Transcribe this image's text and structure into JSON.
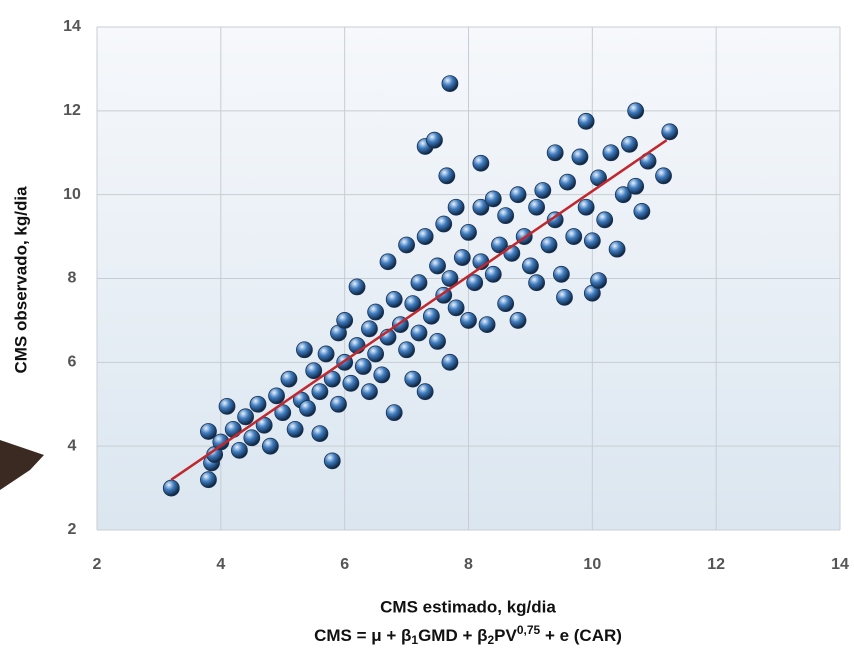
{
  "chart_data": {
    "type": "scatter",
    "x_label": "CMS estimado, kg/dia",
    "formula": [
      "CMS = μ + β",
      "1",
      "GMD + β",
      "2",
      "PV",
      "0,75",
      " + e (CAR)"
    ],
    "y_label": "CMS observado, kg/dia",
    "xlim": [
      2,
      14
    ],
    "ylim": [
      2,
      14
    ],
    "xticks": [
      2,
      4,
      6,
      8,
      10,
      12,
      14
    ],
    "yticks": [
      2,
      4,
      6,
      8,
      10,
      12,
      14
    ],
    "grid": true,
    "series": [
      {
        "type": "scatter",
        "color": "#3f7cc0",
        "x": [
          7.7,
          7.3,
          7.45,
          8.2,
          7.65,
          3.2,
          3.8,
          5.8,
          10.7,
          9.9,
          11.25,
          11.15,
          10.0,
          9.55,
          10.1,
          4.1,
          3.8,
          3.85,
          3.9,
          4.0,
          4.2,
          4.3,
          4.4,
          4.5,
          4.6,
          4.7,
          4.8,
          4.9,
          5.0,
          5.1,
          5.2,
          5.3,
          5.35,
          5.4,
          5.5,
          5.6,
          5.6,
          5.7,
          5.8,
          5.9,
          5.9,
          6.0,
          6.0,
          6.1,
          6.2,
          6.2,
          6.3,
          6.4,
          6.4,
          6.5,
          6.5,
          6.6,
          6.7,
          6.7,
          6.8,
          6.8,
          6.9,
          7.0,
          7.0,
          7.1,
          7.1,
          7.2,
          7.2,
          7.3,
          7.3,
          7.4,
          7.5,
          7.5,
          7.6,
          7.6,
          7.7,
          7.7,
          7.8,
          7.8,
          7.9,
          8.0,
          8.0,
          8.1,
          8.2,
          8.2,
          8.3,
          8.4,
          8.4,
          8.5,
          8.6,
          8.6,
          8.7,
          8.8,
          8.8,
          8.9,
          9.0,
          9.1,
          9.1,
          9.2,
          9.3,
          9.4,
          9.4,
          9.5,
          9.6,
          9.7,
          9.8,
          9.9,
          10.0,
          10.1,
          10.2,
          10.3,
          10.4,
          10.5,
          10.6,
          10.7,
          10.8,
          10.9
        ],
        "values": [
          12.65,
          11.15,
          11.3,
          10.75,
          10.45,
          3.0,
          3.2,
          3.65,
          12.0,
          11.75,
          11.5,
          10.45,
          7.65,
          7.55,
          7.95,
          4.95,
          4.35,
          3.6,
          3.8,
          4.1,
          4.4,
          3.9,
          4.7,
          4.2,
          5.0,
          4.5,
          4.0,
          5.2,
          4.8,
          5.6,
          4.4,
          5.1,
          6.3,
          4.9,
          5.8,
          5.3,
          4.3,
          6.2,
          5.6,
          6.7,
          5.0,
          6.0,
          7.0,
          5.5,
          6.4,
          7.8,
          5.9,
          6.8,
          5.3,
          7.2,
          6.2,
          5.7,
          8.4,
          6.6,
          7.5,
          4.8,
          6.9,
          6.3,
          8.8,
          7.4,
          5.6,
          7.9,
          6.7,
          9.0,
          5.3,
          7.1,
          8.3,
          6.5,
          9.3,
          7.6,
          8.0,
          6.0,
          9.7,
          7.3,
          8.5,
          7.0,
          9.1,
          7.9,
          9.7,
          8.4,
          6.9,
          9.9,
          8.1,
          8.8,
          7.4,
          9.5,
          8.6,
          10.0,
          7.0,
          9.0,
          8.3,
          9.7,
          7.9,
          10.1,
          8.8,
          9.4,
          11.0,
          8.1,
          10.3,
          9.0,
          10.9,
          9.7,
          8.9,
          10.4,
          9.4,
          11.0,
          8.7,
          10.0,
          11.2,
          10.2,
          9.6,
          10.8
        ]
      },
      {
        "type": "line",
        "color": "#c0282d",
        "x": [
          3.2,
          11.2
        ],
        "values": [
          3.2,
          11.3
        ]
      }
    ]
  }
}
